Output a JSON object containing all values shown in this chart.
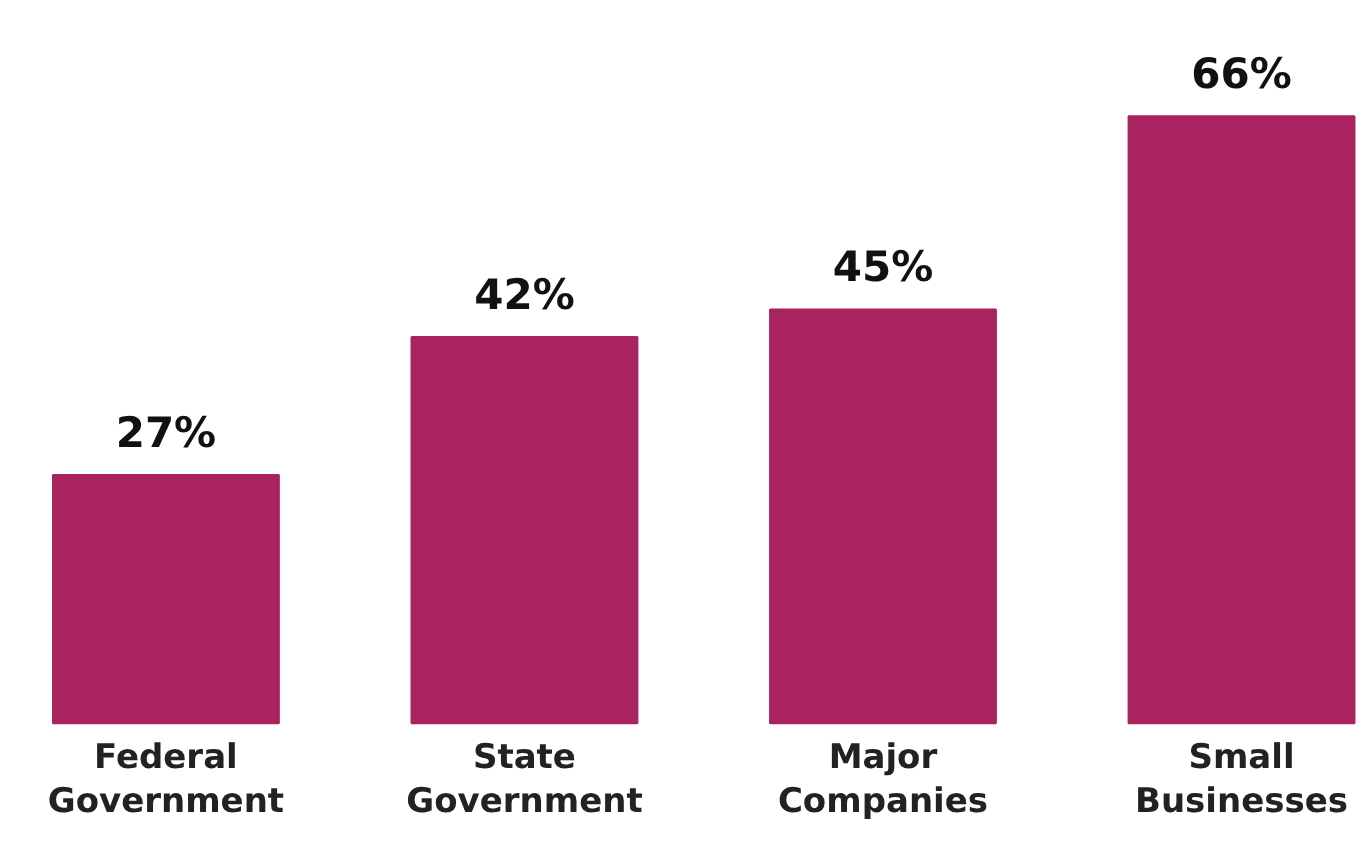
{
  "chart_data": {
    "type": "bar",
    "categories": [
      "Federal Government",
      "State Government",
      "Major Companies",
      "Small Businesses"
    ],
    "values": [
      27,
      42,
      45,
      66
    ],
    "color": "#a8235f",
    "value_labels": [
      "27%",
      "42%",
      "45%",
      "66%"
    ]
  }
}
